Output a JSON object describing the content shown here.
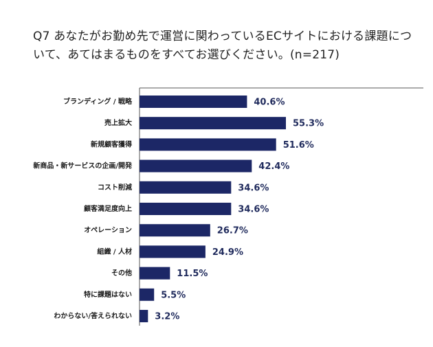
{
  "chart_data": {
    "type": "bar",
    "orientation": "horizontal",
    "title": "Q7 あなたがお勤め先で運営に関わっているECサイトにおける課題について、あてはまるものをすべてお選びください。(n=217)",
    "categories": [
      "ブランディング / 戦略",
      "売上拡大",
      "新規顧客獲得",
      "新商品・新サービスの企画/開発",
      "コスト削減",
      "顧客満足度向上",
      "オペレーション",
      "組織 / 人材",
      "その他",
      "特に課題はない",
      "わからない/答えられない"
    ],
    "values": [
      40.6,
      55.3,
      51.6,
      42.4,
      34.6,
      34.6,
      26.7,
      24.9,
      11.5,
      5.5,
      3.2
    ],
    "value_labels": [
      "40.6%",
      "55.3%",
      "51.6%",
      "42.4%",
      "34.6%",
      "34.6%",
      "26.7%",
      "24.9%",
      "11.5%",
      "5.5%",
      "3.2%"
    ],
    "xlim": [
      0,
      100
    ],
    "xlabel": "",
    "ylabel": "",
    "grid": false,
    "legend": "none",
    "colors": {
      "bar": "#1c2766",
      "axis": "#555555",
      "value_text": "#1f2a5c"
    }
  }
}
